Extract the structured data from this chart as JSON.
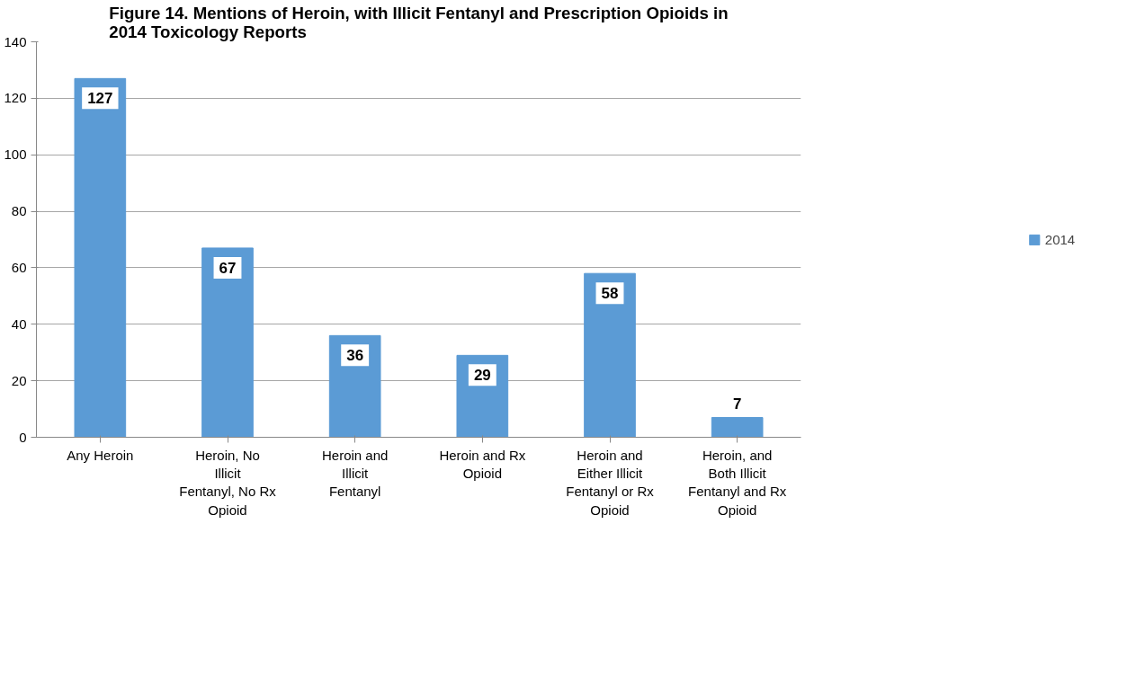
{
  "chart_data": {
    "type": "bar",
    "title": "Figure 14. Mentions of Heroin, with Illicit Fentanyl and Prescription Opioids in\n2014 Toxicology Reports",
    "categories": [
      "Any Heroin",
      "Heroin, No Illicit Fentanyl, No Rx Opioid",
      "Heroin and Illicit Fentanyl",
      "Heroin and Rx Opioid",
      "Heroin and Either Illicit Fentanyl or Rx Opioid",
      "Heroin, and Both Illicit Fentanyl and Rx Opioid"
    ],
    "series": [
      {
        "name": "2014",
        "color": "#5b9bd5",
        "values": [
          127,
          67,
          36,
          29,
          58,
          7
        ]
      }
    ],
    "ylim": [
      0,
      140
    ],
    "yticks": [
      0,
      20,
      40,
      60,
      80,
      100,
      120,
      140
    ],
    "grid": "y",
    "legend": "right",
    "data_labels": true
  }
}
